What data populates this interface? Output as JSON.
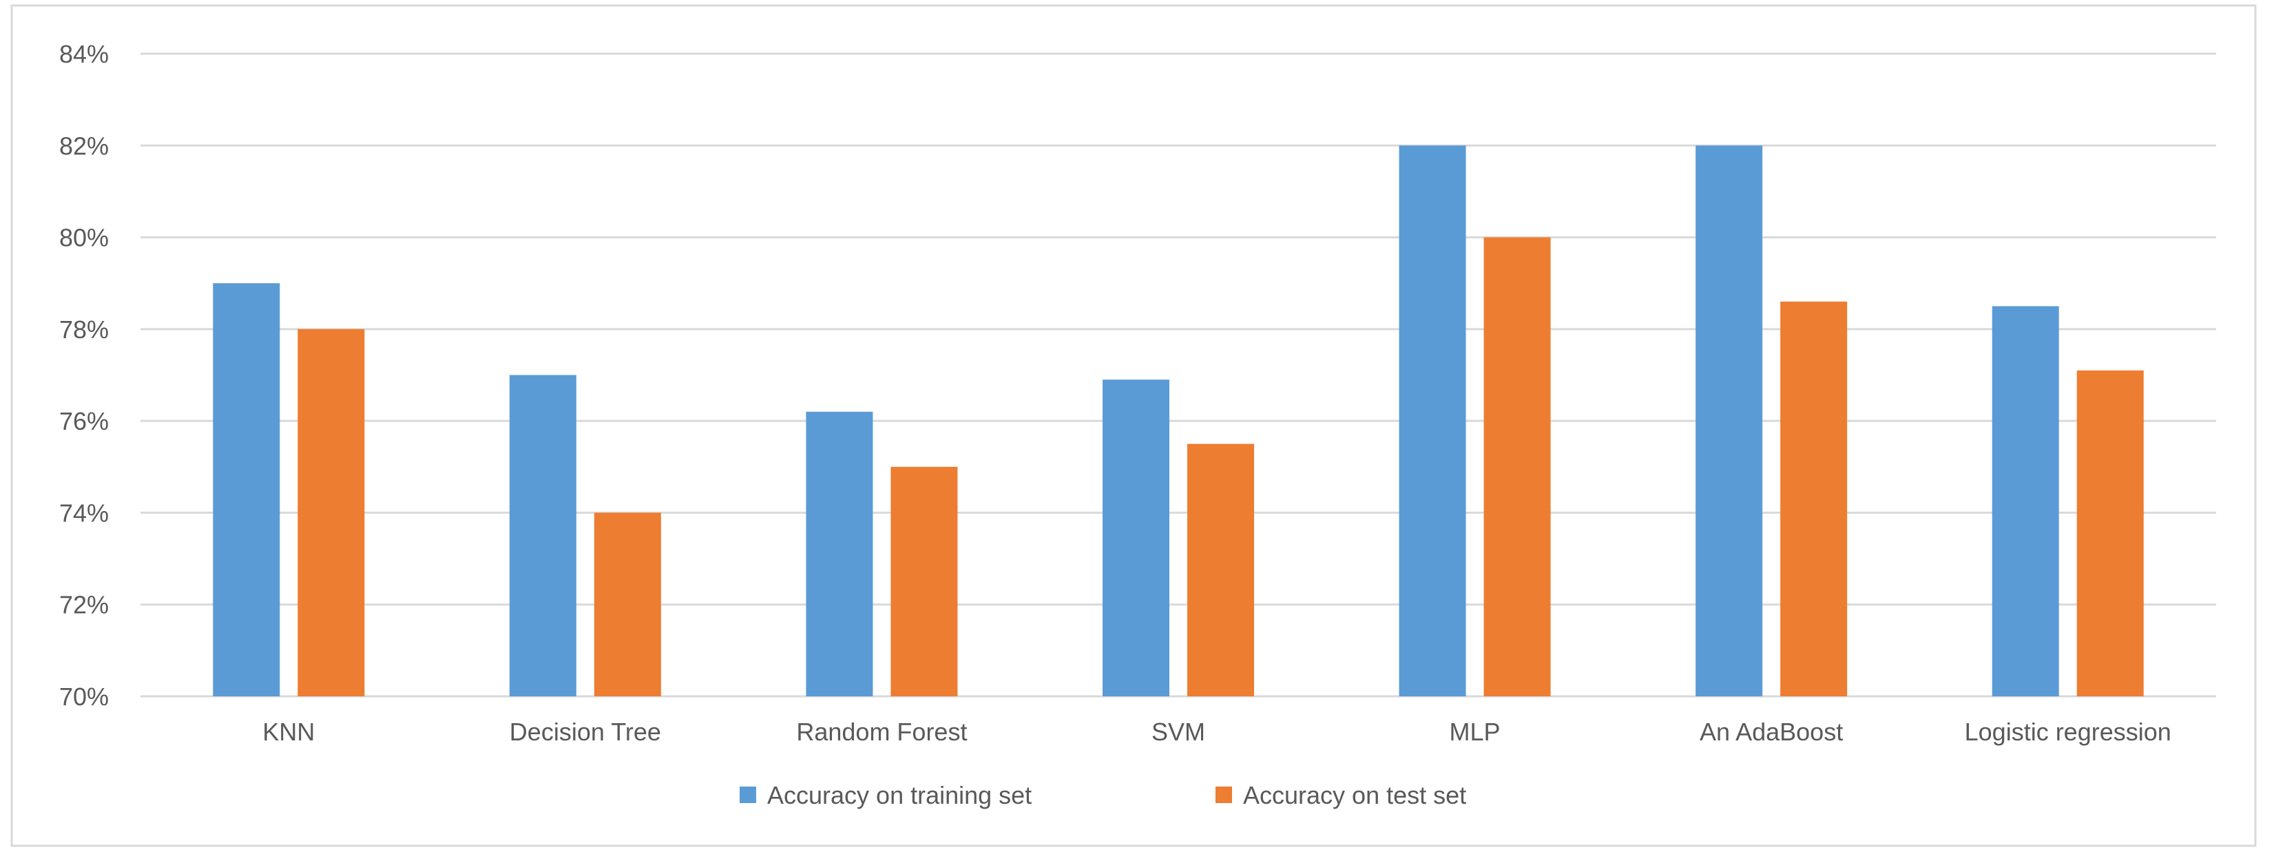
{
  "chart_data": {
    "type": "bar",
    "title": "",
    "xlabel": "",
    "ylabel": "",
    "categories": [
      "KNN",
      "Decision Tree",
      "Random Forest",
      "SVM",
      "MLP",
      "An AdaBoost",
      "Logistic regression"
    ],
    "series": [
      {
        "name": "Accuracy on training set",
        "color": "#5b9bd5",
        "values": [
          79.0,
          77.0,
          76.2,
          76.9,
          82.0,
          82.0,
          78.5
        ]
      },
      {
        "name": "Accuracy on test set",
        "color": "#ed7d31",
        "values": [
          78.0,
          74.0,
          75.0,
          75.5,
          80.0,
          78.6,
          77.1
        ]
      }
    ],
    "ylim": [
      70,
      84
    ],
    "yticks": [
      70,
      72,
      74,
      76,
      78,
      80,
      82,
      84
    ],
    "ytick_labels": [
      "70%",
      "72%",
      "74%",
      "76%",
      "78%",
      "80%",
      "82%",
      "84%"
    ],
    "grid": true,
    "legend_position": "bottom"
  }
}
